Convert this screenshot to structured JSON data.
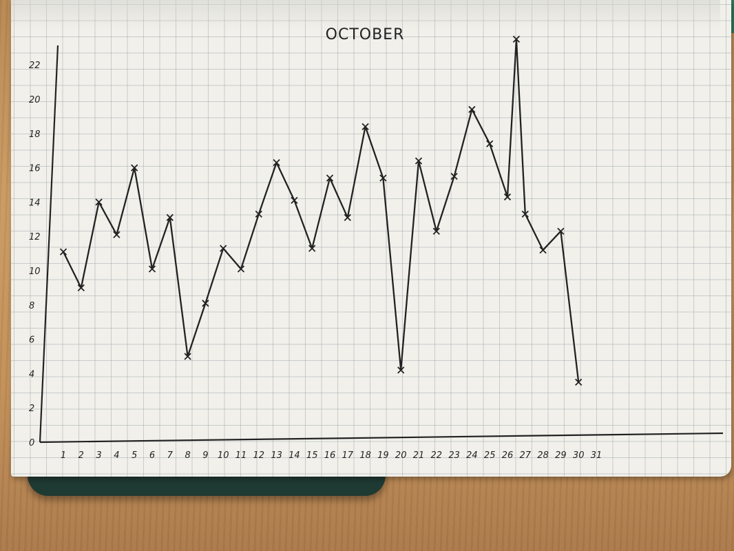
{
  "chart_data": {
    "type": "line",
    "title": "OCTOBER",
    "xlabel": "",
    "ylabel": "",
    "x": [
      1,
      2,
      3,
      4,
      5,
      6,
      7,
      8,
      9,
      10,
      11,
      12,
      13,
      14,
      15,
      16,
      17,
      18,
      19,
      20,
      21,
      22,
      23,
      24,
      25,
      26,
      27,
      28,
      29,
      30,
      31
    ],
    "x_tick_labels": [
      "1",
      "2",
      "3",
      "4",
      "5",
      "6",
      "7",
      "8",
      "9",
      "10",
      "11",
      "12",
      "13",
      "14",
      "15",
      "16",
      "17",
      "18",
      "19",
      "20",
      "21",
      "22",
      "23",
      "24",
      "25",
      "26",
      "27",
      "28",
      "29",
      "30",
      "31"
    ],
    "y_tick_labels": [
      "0",
      "2",
      "4",
      "6",
      "8",
      "10",
      "12",
      "14",
      "16",
      "18",
      "20",
      "22"
    ],
    "ylim": [
      0,
      23
    ],
    "grid": true,
    "series": [
      {
        "name": "",
        "points": [
          [
            1,
            11.1
          ],
          [
            2,
            9.0
          ],
          [
            3,
            14.0
          ],
          [
            4,
            12.1
          ],
          [
            5,
            16.0
          ],
          [
            6,
            10.1
          ],
          [
            7,
            13.1
          ],
          [
            8,
            5.0
          ],
          [
            9,
            8.1
          ],
          [
            10,
            11.3
          ],
          [
            11,
            10.1
          ],
          [
            12,
            13.3
          ],
          [
            13,
            16.3
          ],
          [
            14,
            14.1
          ],
          [
            15,
            11.3
          ],
          [
            16,
            15.4
          ],
          [
            17,
            13.1
          ],
          [
            18,
            18.4
          ],
          [
            19,
            15.4
          ],
          [
            20,
            4.2
          ],
          [
            21,
            16.4
          ],
          [
            22,
            12.3
          ],
          [
            23,
            15.5
          ],
          [
            24,
            19.4
          ],
          [
            25,
            17.4
          ],
          [
            26,
            14.3
          ],
          [
            26.5,
            23.5
          ],
          [
            27,
            13.3
          ],
          [
            28,
            11.2
          ],
          [
            29,
            12.3
          ],
          [
            30,
            3.5
          ]
        ]
      }
    ]
  },
  "colors": {
    "ink": "#222222",
    "paper": "#f1f0ea",
    "grid": "#a9b0b8"
  }
}
